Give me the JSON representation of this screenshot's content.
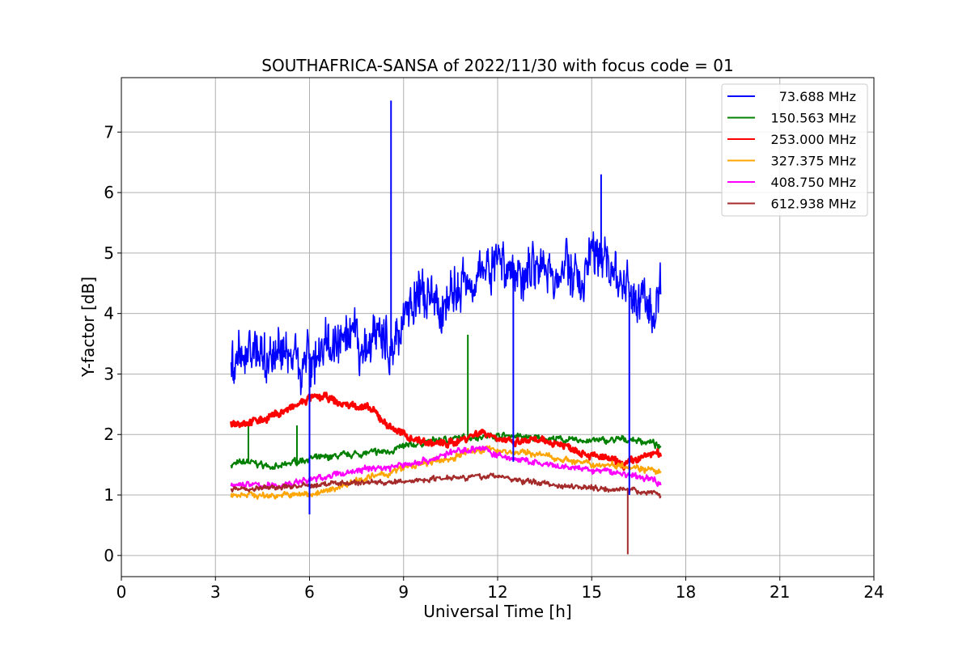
{
  "chart_data": {
    "type": "line",
    "title": "SOUTHAFRICA-SANSA of 2022/11/30 with focus code = 01",
    "xlabel": "Universal Time [h]",
    "ylabel": "Y-factor [dB]",
    "xlim": [
      0,
      24
    ],
    "ylim": [
      -0.35,
      7.9
    ],
    "xticks": [
      0,
      3,
      6,
      9,
      12,
      15,
      18,
      21,
      24
    ],
    "yticks": [
      0,
      1,
      2,
      3,
      4,
      5,
      6,
      7
    ],
    "grid": true,
    "legend_position": "top-right",
    "series": [
      {
        "name": "73.688 MHz",
        "color": "#0000ff",
        "x": [
          3.5,
          3.9,
          4.2,
          4.6,
          5.0,
          5.4,
          5.8,
          6.2,
          6.6,
          7.0,
          7.4,
          7.8,
          8.2,
          8.6,
          9.0,
          9.4,
          9.8,
          10.2,
          10.6,
          11.0,
          11.4,
          11.8,
          12.2,
          12.6,
          13.0,
          13.4,
          13.8,
          14.2,
          14.6,
          15.0,
          15.4,
          15.8,
          16.2,
          16.6,
          17.0,
          17.2
        ],
        "y": [
          3.1,
          3.3,
          3.5,
          3.2,
          3.4,
          3.3,
          3.2,
          3.3,
          3.5,
          3.4,
          3.6,
          3.3,
          3.8,
          3.3,
          4.0,
          4.3,
          4.2,
          4.1,
          4.3,
          4.6,
          4.7,
          4.8,
          4.9,
          4.6,
          4.8,
          4.9,
          4.5,
          4.8,
          4.5,
          4.9,
          5.0,
          4.6,
          4.3,
          4.2,
          4.0,
          4.3
        ],
        "spikes": [
          [
            8.6,
            7.52
          ],
          [
            6.0,
            0.68
          ],
          [
            12.5,
            1.55
          ],
          [
            16.2,
            1.0
          ],
          [
            15.3,
            6.3
          ]
        ]
      },
      {
        "name": "150.563 MHz",
        "color": "#008000",
        "x": [
          3.5,
          4.0,
          4.5,
          5.0,
          5.5,
          6.0,
          6.5,
          7.0,
          7.5,
          8.0,
          8.5,
          9.0,
          9.5,
          10.0,
          10.5,
          11.0,
          11.5,
          12.0,
          12.5,
          13.0,
          13.5,
          14.0,
          14.5,
          15.0,
          15.5,
          16.0,
          16.5,
          17.0,
          17.2
        ],
        "y": [
          1.5,
          1.55,
          1.5,
          1.45,
          1.55,
          1.6,
          1.62,
          1.65,
          1.68,
          1.7,
          1.72,
          1.8,
          1.85,
          1.9,
          1.92,
          1.95,
          1.97,
          1.98,
          1.98,
          1.95,
          1.93,
          1.92,
          1.9,
          1.9,
          1.9,
          1.92,
          1.9,
          1.85,
          1.75
        ],
        "spikes": [
          [
            11.05,
            3.65
          ],
          [
            5.6,
            2.15
          ],
          [
            4.05,
            2.15
          ]
        ]
      },
      {
        "name": "253.000 MHz",
        "color": "#ff0000",
        "x": [
          3.5,
          4.0,
          4.5,
          5.0,
          5.5,
          6.0,
          6.5,
          7.0,
          7.5,
          8.0,
          8.5,
          9.0,
          9.5,
          10.0,
          10.5,
          11.0,
          11.5,
          12.0,
          12.5,
          13.0,
          13.5,
          14.0,
          14.5,
          15.0,
          15.5,
          16.0,
          16.5,
          17.0,
          17.2
        ],
        "y": [
          2.2,
          2.2,
          2.25,
          2.35,
          2.45,
          2.6,
          2.62,
          2.5,
          2.48,
          2.4,
          2.15,
          2.0,
          1.9,
          1.85,
          1.85,
          1.95,
          2.05,
          1.95,
          1.85,
          1.9,
          1.88,
          1.85,
          1.75,
          1.65,
          1.6,
          1.5,
          1.6,
          1.7,
          1.65
        ],
        "spikes": []
      },
      {
        "name": "327.375 MHz",
        "color": "#ffa500",
        "x": [
          3.5,
          4.0,
          4.5,
          5.0,
          5.5,
          6.0,
          6.5,
          7.0,
          7.5,
          8.0,
          8.5,
          9.0,
          9.5,
          10.0,
          10.5,
          11.0,
          11.5,
          12.0,
          12.5,
          13.0,
          13.5,
          14.0,
          14.5,
          15.0,
          15.5,
          16.0,
          16.5,
          17.0,
          17.2
        ],
        "y": [
          1.0,
          1.02,
          0.98,
          1.0,
          1.0,
          1.02,
          1.05,
          1.15,
          1.25,
          1.3,
          1.35,
          1.45,
          1.5,
          1.55,
          1.6,
          1.7,
          1.75,
          1.75,
          1.7,
          1.7,
          1.65,
          1.6,
          1.55,
          1.5,
          1.5,
          1.5,
          1.45,
          1.4,
          1.35
        ],
        "spikes": []
      },
      {
        "name": "408.750 MHz",
        "color": "#ff00ff",
        "x": [
          3.5,
          4.0,
          4.5,
          5.0,
          5.5,
          6.0,
          6.5,
          7.0,
          7.5,
          8.0,
          8.5,
          9.0,
          9.5,
          10.0,
          10.5,
          11.0,
          11.5,
          12.0,
          12.5,
          13.0,
          13.5,
          14.0,
          14.5,
          15.0,
          15.5,
          16.0,
          16.5,
          17.0,
          17.2
        ],
        "y": [
          1.15,
          1.18,
          1.15,
          1.15,
          1.2,
          1.25,
          1.3,
          1.35,
          1.4,
          1.45,
          1.45,
          1.5,
          1.55,
          1.6,
          1.7,
          1.75,
          1.78,
          1.65,
          1.6,
          1.55,
          1.5,
          1.45,
          1.45,
          1.4,
          1.4,
          1.35,
          1.3,
          1.25,
          1.2
        ],
        "spikes": []
      },
      {
        "name": "612.938 MHz",
        "color": "#a52a2a",
        "x": [
          3.5,
          4.0,
          4.5,
          5.0,
          5.5,
          6.0,
          6.5,
          7.0,
          7.5,
          8.0,
          8.5,
          9.0,
          9.5,
          10.0,
          10.5,
          11.0,
          11.5,
          12.0,
          12.5,
          13.0,
          13.5,
          14.0,
          14.5,
          15.0,
          15.5,
          16.0,
          16.5,
          17.0,
          17.2
        ],
        "y": [
          1.1,
          1.1,
          1.12,
          1.12,
          1.15,
          1.15,
          1.18,
          1.2,
          1.2,
          1.22,
          1.2,
          1.22,
          1.25,
          1.27,
          1.3,
          1.3,
          1.3,
          1.32,
          1.25,
          1.22,
          1.2,
          1.15,
          1.15,
          1.12,
          1.1,
          1.1,
          1.05,
          1.05,
          1.0
        ],
        "spikes": [
          [
            16.15,
            0.02
          ]
        ]
      }
    ]
  }
}
